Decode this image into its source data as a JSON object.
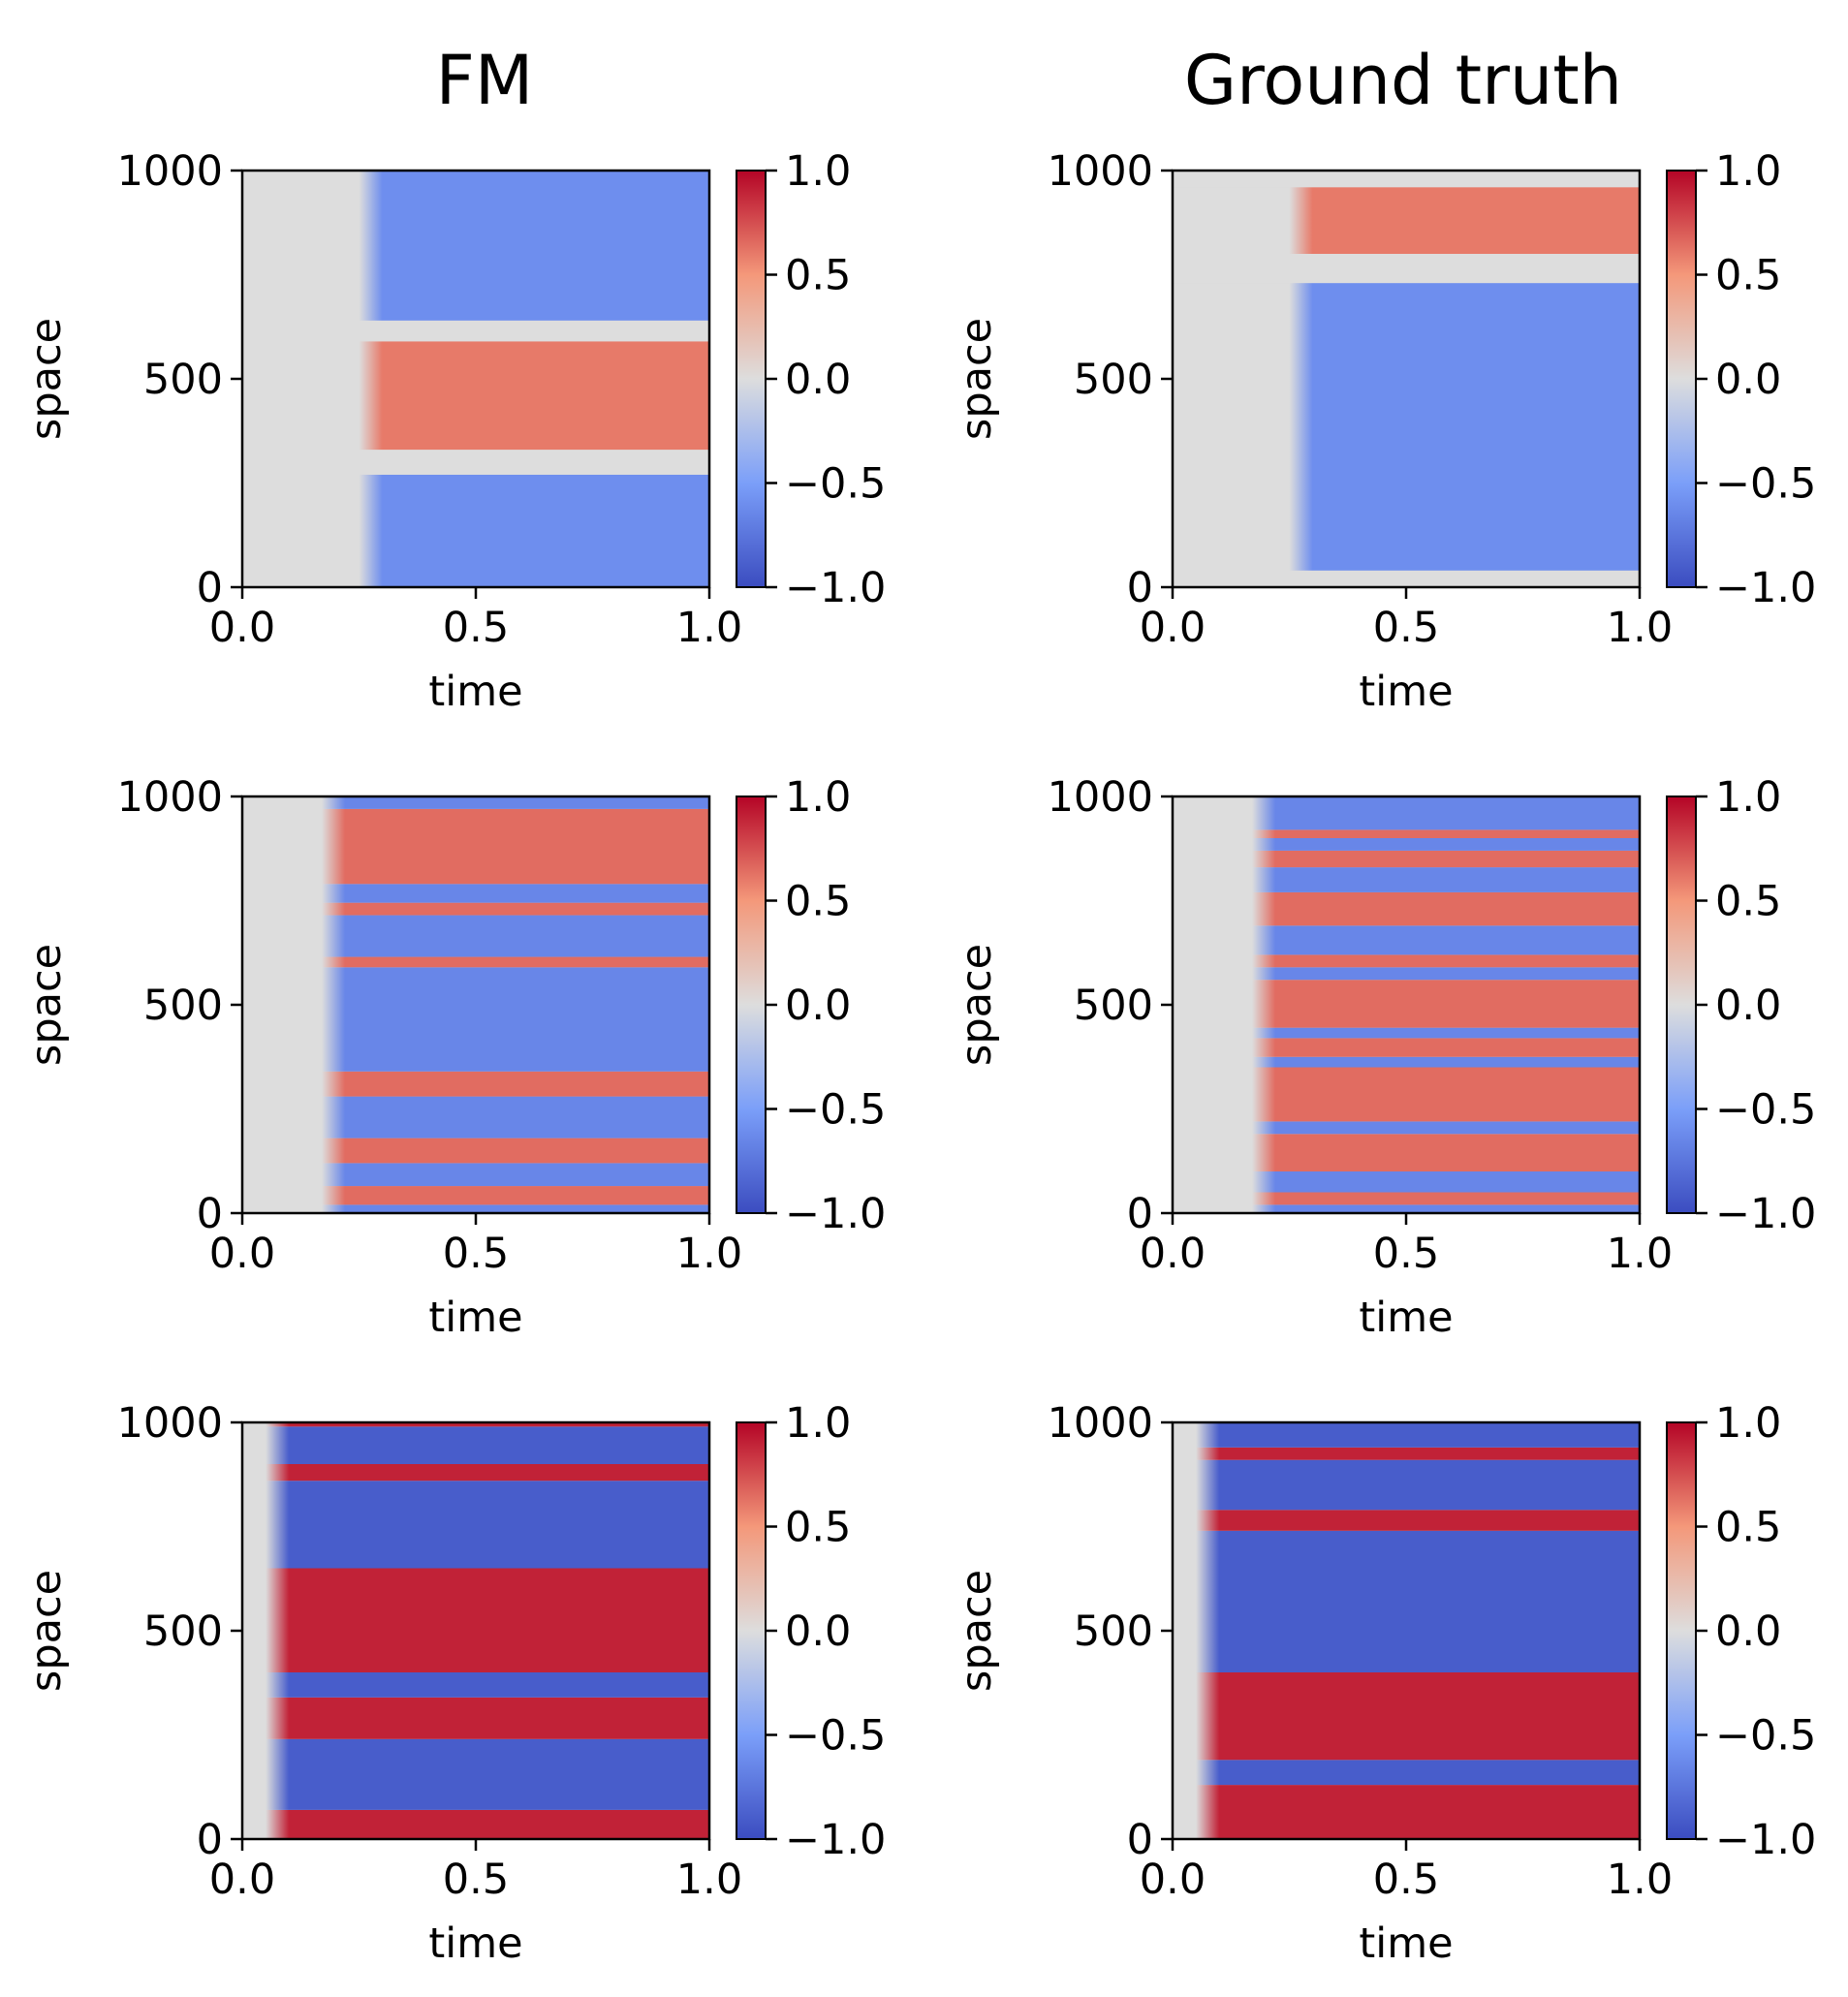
{
  "column_titles": [
    "FM",
    "Ground truth"
  ],
  "colormap": {
    "name": "coolwarm",
    "stops": [
      "#3b4cc0",
      "#7b9ff9",
      "#dddddd",
      "#f4987a",
      "#b40426"
    ]
  },
  "chart_data": [
    {
      "type": "heatmap",
      "row": 0,
      "column": "FM",
      "title": "",
      "xlabel": "time",
      "ylabel": "space",
      "xlim": [
        0.0,
        1.0
      ],
      "ylim": [
        0,
        1000
      ],
      "xticks": [
        "0.0",
        "0.5",
        "1.0"
      ],
      "yticks": [
        "0",
        "500",
        "1000"
      ],
      "colorbar": {
        "range": [
          -1.0,
          1.0
        ],
        "ticks": [
          "1.0",
          "0.5",
          "0.0",
          "−0.5",
          "−1.0"
        ]
      },
      "onset_time": 0.3,
      "steady_value": 0.6,
      "bands": [
        {
          "from": 0,
          "to": 270,
          "sign": -1
        },
        {
          "from": 270,
          "to": 330,
          "sign": 0
        },
        {
          "from": 330,
          "to": 590,
          "sign": 1
        },
        {
          "from": 590,
          "to": 640,
          "sign": 0
        },
        {
          "from": 640,
          "to": 1000,
          "sign": -1
        }
      ]
    },
    {
      "type": "heatmap",
      "row": 0,
      "column": "Ground truth",
      "title": "",
      "xlabel": "time",
      "ylabel": "space",
      "xlim": [
        0.0,
        1.0
      ],
      "ylim": [
        0,
        1000
      ],
      "xticks": [
        "0.0",
        "0.5",
        "1.0"
      ],
      "yticks": [
        "0",
        "500",
        "1000"
      ],
      "colorbar": {
        "range": [
          -1.0,
          1.0
        ],
        "ticks": [
          "1.0",
          "0.5",
          "0.0",
          "−0.5",
          "−1.0"
        ]
      },
      "onset_time": 0.3,
      "steady_value": 0.6,
      "bands": [
        {
          "from": 0,
          "to": 40,
          "sign": 0
        },
        {
          "from": 40,
          "to": 730,
          "sign": -1
        },
        {
          "from": 730,
          "to": 800,
          "sign": 0
        },
        {
          "from": 800,
          "to": 960,
          "sign": 1
        },
        {
          "from": 960,
          "to": 1000,
          "sign": 0
        }
      ]
    },
    {
      "type": "heatmap",
      "row": 1,
      "column": "FM",
      "title": "",
      "xlabel": "time",
      "ylabel": "space",
      "xlim": [
        0.0,
        1.0
      ],
      "ylim": [
        0,
        1000
      ],
      "xticks": [
        "0.0",
        "0.5",
        "1.0"
      ],
      "yticks": [
        "0",
        "500",
        "1000"
      ],
      "colorbar": {
        "range": [
          -1.0,
          1.0
        ],
        "ticks": [
          "1.0",
          "0.5",
          "0.0",
          "−0.5",
          "−1.0"
        ]
      },
      "onset_time": 0.22,
      "steady_value": 0.65,
      "bands": [
        {
          "from": 0,
          "to": 20,
          "sign": -1
        },
        {
          "from": 20,
          "to": 65,
          "sign": 1
        },
        {
          "from": 65,
          "to": 120,
          "sign": -1
        },
        {
          "from": 120,
          "to": 180,
          "sign": 1
        },
        {
          "from": 180,
          "to": 280,
          "sign": -1
        },
        {
          "from": 280,
          "to": 340,
          "sign": 1
        },
        {
          "from": 340,
          "to": 590,
          "sign": -1
        },
        {
          "from": 590,
          "to": 615,
          "sign": 1
        },
        {
          "from": 615,
          "to": 715,
          "sign": -1
        },
        {
          "from": 715,
          "to": 745,
          "sign": 1
        },
        {
          "from": 745,
          "to": 790,
          "sign": -1
        },
        {
          "from": 790,
          "to": 970,
          "sign": 1
        },
        {
          "from": 970,
          "to": 1000,
          "sign": -1
        }
      ]
    },
    {
      "type": "heatmap",
      "row": 1,
      "column": "Ground truth",
      "title": "",
      "xlabel": "time",
      "ylabel": "space",
      "xlim": [
        0.0,
        1.0
      ],
      "ylim": [
        0,
        1000
      ],
      "xticks": [
        "0.0",
        "0.5",
        "1.0"
      ],
      "yticks": [
        "0",
        "500",
        "1000"
      ],
      "colorbar": {
        "range": [
          -1.0,
          1.0
        ],
        "ticks": [
          "1.0",
          "0.5",
          "0.0",
          "−0.5",
          "−1.0"
        ]
      },
      "onset_time": 0.22,
      "steady_value": 0.65,
      "bands": [
        {
          "from": 0,
          "to": 20,
          "sign": -1
        },
        {
          "from": 20,
          "to": 50,
          "sign": 1
        },
        {
          "from": 50,
          "to": 100,
          "sign": -1
        },
        {
          "from": 100,
          "to": 190,
          "sign": 1
        },
        {
          "from": 190,
          "to": 220,
          "sign": -1
        },
        {
          "from": 220,
          "to": 350,
          "sign": 1
        },
        {
          "from": 350,
          "to": 375,
          "sign": -1
        },
        {
          "from": 375,
          "to": 420,
          "sign": 1
        },
        {
          "from": 420,
          "to": 445,
          "sign": -1
        },
        {
          "from": 445,
          "to": 560,
          "sign": 1
        },
        {
          "from": 560,
          "to": 590,
          "sign": -1
        },
        {
          "from": 590,
          "to": 620,
          "sign": 1
        },
        {
          "from": 620,
          "to": 690,
          "sign": -1
        },
        {
          "from": 690,
          "to": 770,
          "sign": 1
        },
        {
          "from": 770,
          "to": 830,
          "sign": -1
        },
        {
          "from": 830,
          "to": 870,
          "sign": 1
        },
        {
          "from": 870,
          "to": 900,
          "sign": -1
        },
        {
          "from": 900,
          "to": 920,
          "sign": 1
        },
        {
          "from": 920,
          "to": 1000,
          "sign": -1
        }
      ]
    },
    {
      "type": "heatmap",
      "row": 2,
      "column": "FM",
      "title": "",
      "xlabel": "time",
      "ylabel": "space",
      "xlim": [
        0.0,
        1.0
      ],
      "ylim": [
        0,
        1000
      ],
      "xticks": [
        "0.0",
        "0.5",
        "1.0"
      ],
      "yticks": [
        "0",
        "500",
        "1000"
      ],
      "colorbar": {
        "range": [
          -1.0,
          1.0
        ],
        "ticks": [
          "1.0",
          "0.5",
          "0.0",
          "−0.5",
          "−1.0"
        ]
      },
      "onset_time": 0.1,
      "steady_value": 0.9,
      "bands": [
        {
          "from": 0,
          "to": 70,
          "sign": 1
        },
        {
          "from": 70,
          "to": 200,
          "sign": -1
        },
        {
          "from": 200,
          "to": 240,
          "sign": -1
        },
        {
          "from": 240,
          "to": 340,
          "sign": 1
        },
        {
          "from": 340,
          "to": 400,
          "sign": -1
        },
        {
          "from": 400,
          "to": 650,
          "sign": 1
        },
        {
          "from": 650,
          "to": 860,
          "sign": -1
        },
        {
          "from": 860,
          "to": 900,
          "sign": 1
        },
        {
          "from": 900,
          "to": 990,
          "sign": -1
        },
        {
          "from": 990,
          "to": 1000,
          "sign": 1
        }
      ]
    },
    {
      "type": "heatmap",
      "row": 2,
      "column": "Ground truth",
      "title": "",
      "xlabel": "time",
      "ylabel": "space",
      "xlim": [
        0.0,
        1.0
      ],
      "ylim": [
        0,
        1000
      ],
      "xticks": [
        "0.0",
        "0.5",
        "1.0"
      ],
      "yticks": [
        "0",
        "500",
        "1000"
      ],
      "colorbar": {
        "range": [
          -1.0,
          1.0
        ],
        "ticks": [
          "1.0",
          "0.5",
          "0.0",
          "−0.5",
          "−1.0"
        ]
      },
      "onset_time": 0.1,
      "steady_value": 0.9,
      "bands": [
        {
          "from": 0,
          "to": 130,
          "sign": 1
        },
        {
          "from": 130,
          "to": 190,
          "sign": -1
        },
        {
          "from": 190,
          "to": 400,
          "sign": 1
        },
        {
          "from": 400,
          "to": 740,
          "sign": -1
        },
        {
          "from": 740,
          "to": 790,
          "sign": 1
        },
        {
          "from": 790,
          "to": 910,
          "sign": -1
        },
        {
          "from": 910,
          "to": 940,
          "sign": 1
        },
        {
          "from": 940,
          "to": 1000,
          "sign": -1
        }
      ]
    }
  ]
}
